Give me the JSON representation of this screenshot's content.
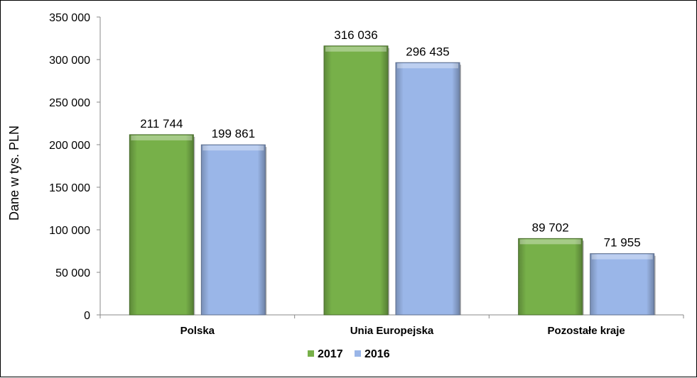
{
  "chart_data": {
    "type": "bar",
    "categories": [
      "Polska",
      "Unia Europejska",
      "Pozostałe kraje"
    ],
    "series": [
      {
        "name": "2017",
        "values": [
          211744,
          316036,
          89702
        ],
        "labels": [
          "211 744",
          "316 036",
          "89 702"
        ],
        "color": "#77b049"
      },
      {
        "name": "2016",
        "values": [
          199861,
          296435,
          71955
        ],
        "labels": [
          "199 861",
          "296 435",
          "71 955"
        ],
        "color": "#9ab6e8"
      }
    ],
    "ylabel": "Dane w tys. PLN",
    "ylim": [
      0,
      350000
    ],
    "yticks": [
      0,
      50000,
      100000,
      150000,
      200000,
      250000,
      300000,
      350000
    ],
    "ytick_labels": [
      "0",
      "50 000",
      "100 000",
      "150 000",
      "200 000",
      "250 000",
      "300 000",
      "350 000"
    ],
    "grid": false,
    "legend_position": "bottom"
  }
}
